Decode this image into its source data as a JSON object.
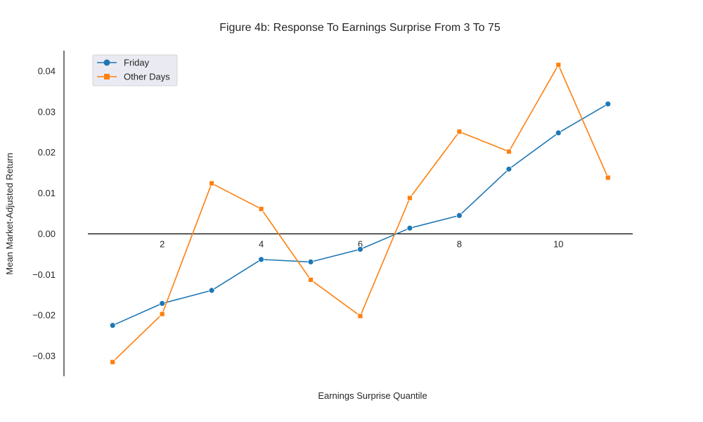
{
  "chart_data": {
    "type": "line",
    "title": "Figure 4b: Response To Earnings Surprise From 3 To 75",
    "xlabel": "Earnings Surprise Quantile",
    "ylabel": "Mean Market-Adjusted Return",
    "x": [
      1,
      2,
      3,
      4,
      5,
      6,
      7,
      8,
      9,
      10,
      11
    ],
    "xlim": [
      0.5,
      11.5
    ],
    "ylim": [
      -0.035,
      0.045
    ],
    "xticks": [
      2,
      4,
      6,
      8,
      10
    ],
    "xtick_labels": [
      "2",
      "4",
      "6",
      "8",
      "10"
    ],
    "yticks": [
      -0.03,
      -0.02,
      -0.01,
      0.0,
      0.01,
      0.02,
      0.03,
      0.04
    ],
    "ytick_labels": [
      "−0.03",
      "−0.02",
      "−0.01",
      "0.00",
      "0.01",
      "0.02",
      "0.03",
      "0.04"
    ],
    "grid": false,
    "legend_position": "top-left",
    "series": [
      {
        "name": "Friday",
        "color": "#1f77b4",
        "marker": "circle",
        "values": [
          -0.0225,
          -0.0171,
          -0.0139,
          -0.0063,
          -0.0069,
          -0.0038,
          0.0014,
          0.0045,
          0.0159,
          0.0248,
          0.0319
        ]
      },
      {
        "name": "Other Days",
        "color": "#ff7f0e",
        "marker": "square",
        "values": [
          -0.0315,
          -0.0197,
          0.0124,
          0.0061,
          -0.0113,
          -0.0202,
          0.0088,
          0.0251,
          0.0202,
          0.0415,
          0.0138
        ]
      }
    ]
  }
}
